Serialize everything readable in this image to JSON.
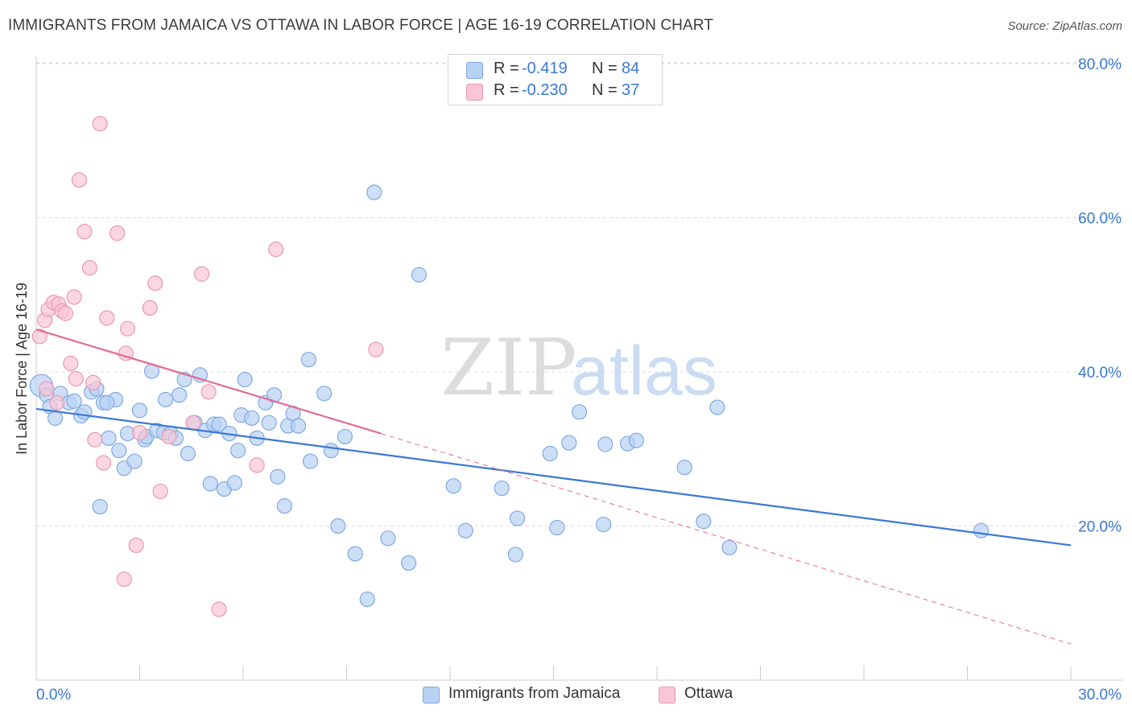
{
  "title": "IMMIGRANTS FROM JAMAICA VS OTTAWA IN LABOR FORCE | AGE 16-19 CORRELATION CHART",
  "source": "Source: ZipAtlas.com",
  "watermark": {
    "zip": "ZIP",
    "atlas": "atlas"
  },
  "colors": {
    "blue_fill": "#b8d2f3",
    "blue_stroke": "#7fa9e2",
    "blue_line": "#3a78d6",
    "pink_fill": "#f8c6d6",
    "pink_stroke": "#eb98b3",
    "pink_line": "#e46a93",
    "axis_label": "#3a78d6",
    "grid": "#dcdcdc"
  },
  "legend_top": [
    {
      "r_label": "R =",
      "r_value": "-0.419",
      "n_label": "N =",
      "n_value": "84"
    },
    {
      "r_label": "R =",
      "r_value": "-0.230",
      "n_label": "N =",
      "n_value": "37"
    }
  ],
  "chart_data": {
    "type": "scatter",
    "title": "IMMIGRANTS FROM JAMAICA VS OTTAWA IN LABOR FORCE | AGE 16-19 CORRELATION CHART",
    "xlabel": "",
    "ylabel": "In Labor Force | Age 16-19",
    "xlim": [
      0,
      30
    ],
    "ylim": [
      0,
      85
    ],
    "x_tick_labels": [
      "0.0%",
      "30.0%"
    ],
    "y_ticks": [
      20,
      40,
      60,
      80
    ],
    "y_tick_labels": [
      "20.0%",
      "40.0%",
      "60.0%",
      "80.0%"
    ],
    "grid": true,
    "legend_position": "bottom-center",
    "series": [
      {
        "name": "Immigrants from Jamaica",
        "color": "#7fa9e2",
        "r": -0.419,
        "n": 84,
        "trend": {
          "x": [
            0,
            30
          ],
          "y": [
            35.2,
            17.5
          ],
          "style": "solid"
        },
        "points": [
          [
            0.15,
            38.2
          ],
          [
            0.3,
            37.0
          ],
          [
            0.4,
            35.5
          ],
          [
            0.55,
            34.0
          ],
          [
            0.7,
            37.2
          ],
          [
            0.95,
            36.0
          ],
          [
            1.1,
            36.2
          ],
          [
            1.3,
            34.3
          ],
          [
            1.4,
            34.8
          ],
          [
            1.6,
            37.4
          ],
          [
            1.85,
            22.5
          ],
          [
            1.95,
            36.0
          ],
          [
            2.1,
            31.4
          ],
          [
            2.3,
            36.4
          ],
          [
            2.4,
            29.8
          ],
          [
            2.55,
            27.5
          ],
          [
            2.65,
            32.0
          ],
          [
            2.85,
            28.4
          ],
          [
            3.0,
            35.0
          ],
          [
            3.15,
            31.2
          ],
          [
            3.2,
            31.6
          ],
          [
            3.35,
            40.1
          ],
          [
            3.5,
            32.4
          ],
          [
            3.7,
            32.1
          ],
          [
            3.75,
            36.4
          ],
          [
            3.9,
            32.0
          ],
          [
            4.05,
            31.4
          ],
          [
            4.15,
            37.0
          ],
          [
            4.3,
            39.0
          ],
          [
            4.4,
            29.4
          ],
          [
            4.6,
            33.4
          ],
          [
            4.75,
            39.6
          ],
          [
            4.9,
            32.4
          ],
          [
            5.05,
            25.5
          ],
          [
            5.15,
            33.2
          ],
          [
            5.3,
            33.2
          ],
          [
            5.45,
            24.8
          ],
          [
            5.6,
            32.0
          ],
          [
            5.75,
            25.6
          ],
          [
            5.85,
            29.8
          ],
          [
            5.95,
            34.4
          ],
          [
            6.05,
            39.0
          ],
          [
            6.25,
            34.0
          ],
          [
            6.4,
            31.4
          ],
          [
            6.65,
            36.0
          ],
          [
            6.75,
            33.4
          ],
          [
            6.9,
            37.0
          ],
          [
            7.0,
            26.4
          ],
          [
            7.2,
            22.6
          ],
          [
            7.3,
            33.0
          ],
          [
            7.45,
            34.6
          ],
          [
            7.6,
            33.0
          ],
          [
            7.9,
            41.6
          ],
          [
            7.95,
            28.4
          ],
          [
            8.35,
            37.2
          ],
          [
            8.55,
            29.8
          ],
          [
            8.75,
            20.0
          ],
          [
            8.95,
            31.6
          ],
          [
            9.25,
            16.4
          ],
          [
            9.6,
            10.5
          ],
          [
            9.8,
            63.3
          ],
          [
            10.2,
            18.4
          ],
          [
            10.8,
            15.2
          ],
          [
            11.1,
            52.6
          ],
          [
            12.1,
            25.2
          ],
          [
            12.45,
            19.4
          ],
          [
            13.5,
            24.9
          ],
          [
            13.9,
            16.3
          ],
          [
            13.95,
            21.0
          ],
          [
            14.9,
            29.4
          ],
          [
            15.1,
            19.8
          ],
          [
            15.45,
            30.8
          ],
          [
            15.75,
            34.8
          ],
          [
            16.45,
            20.2
          ],
          [
            16.5,
            30.6
          ],
          [
            17.15,
            30.7
          ],
          [
            17.4,
            31.1
          ],
          [
            18.8,
            27.6
          ],
          [
            19.35,
            20.6
          ],
          [
            19.75,
            35.4
          ],
          [
            20.1,
            17.2
          ],
          [
            27.4,
            19.4
          ],
          [
            1.75,
            37.8
          ],
          [
            2.05,
            36.0
          ]
        ]
      },
      {
        "name": "Ottawa",
        "color": "#eb98b3",
        "r": -0.23,
        "n": 37,
        "trend": {
          "x": [
            0,
            10
          ],
          "y": [
            45.5,
            32.0
          ],
          "style": "solid",
          "extended": {
            "x": [
              10,
              30
            ],
            "y": [
              32.0,
              4.7
            ],
            "style": "dashed"
          }
        },
        "points": [
          [
            0.1,
            44.6
          ],
          [
            0.25,
            46.7
          ],
          [
            0.3,
            37.8
          ],
          [
            0.35,
            48.1
          ],
          [
            0.5,
            49.0
          ],
          [
            0.6,
            36.0
          ],
          [
            0.65,
            48.8
          ],
          [
            0.75,
            47.9
          ],
          [
            0.85,
            47.6
          ],
          [
            1.0,
            41.1
          ],
          [
            1.1,
            49.7
          ],
          [
            1.15,
            39.1
          ],
          [
            1.25,
            64.9
          ],
          [
            1.4,
            58.2
          ],
          [
            1.55,
            53.5
          ],
          [
            1.65,
            38.6
          ],
          [
            1.7,
            31.2
          ],
          [
            1.85,
            72.2
          ],
          [
            1.95,
            28.2
          ],
          [
            2.05,
            47.0
          ],
          [
            2.35,
            58.0
          ],
          [
            2.55,
            13.1
          ],
          [
            2.6,
            42.4
          ],
          [
            2.65,
            45.6
          ],
          [
            2.9,
            17.5
          ],
          [
            3.0,
            32.1
          ],
          [
            3.3,
            48.3
          ],
          [
            3.45,
            51.5
          ],
          [
            3.6,
            24.5
          ],
          [
            3.85,
            31.6
          ],
          [
            4.55,
            33.4
          ],
          [
            4.8,
            52.7
          ],
          [
            5.0,
            37.4
          ],
          [
            5.3,
            9.2
          ],
          [
            6.4,
            27.9
          ],
          [
            6.95,
            55.9
          ],
          [
            9.85,
            42.9
          ]
        ]
      }
    ]
  }
}
